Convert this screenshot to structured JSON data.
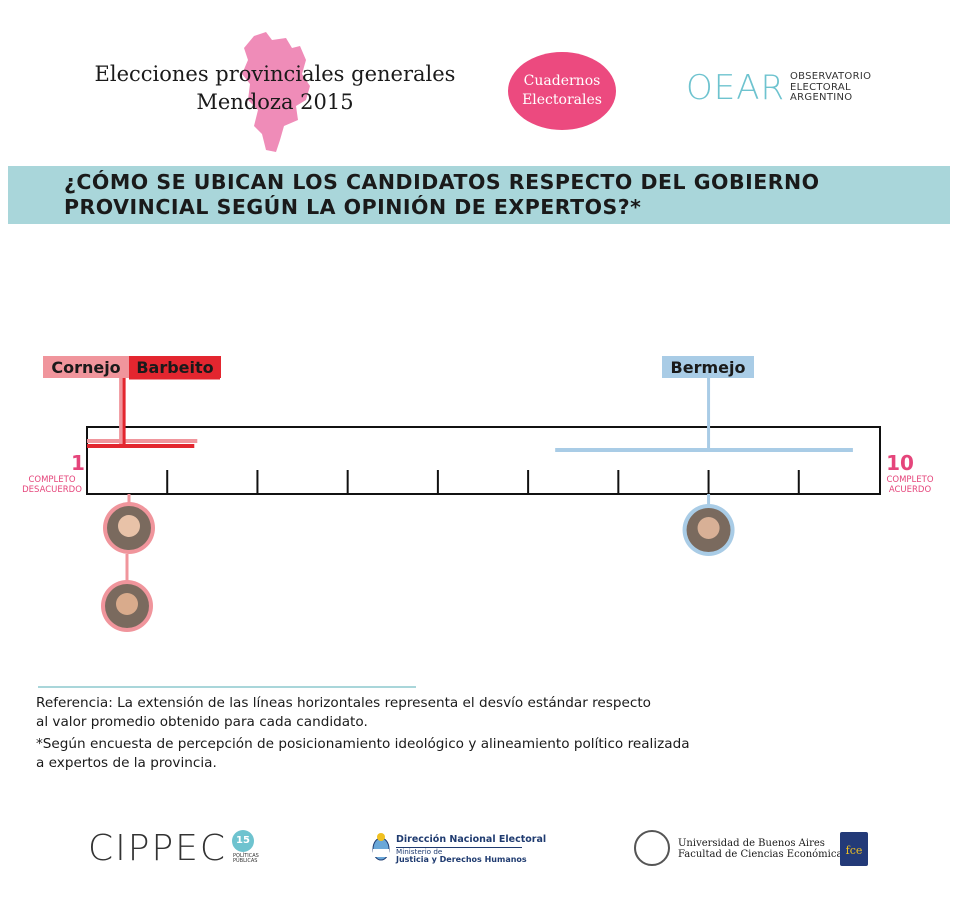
{
  "header": {
    "title_line1": "Elecciones provinciales generales",
    "title_line2": "Mendoza 2015",
    "badge_line1": "Cuadernos",
    "badge_line2": "Electorales",
    "oear_mark": "OEAR",
    "oear_line1": "OBSERVATORIO",
    "oear_line2": "ELECTORAL",
    "oear_line3": "ARGENTINO"
  },
  "banner": {
    "line1": "¿CÓMO SE UBICAN LOS CANDIDATOS RESPECTO DEL GOBIERNO",
    "line2": "PROVINCIAL SEGÚN LA OPINIÓN DE EXPERTOS?*"
  },
  "chart_data": {
    "type": "scatter",
    "title": "",
    "xlim": [
      1,
      10
    ],
    "ticks": [
      1,
      2,
      3,
      4,
      5,
      6,
      7,
      8,
      9,
      10
    ],
    "scale_left": {
      "value": "1",
      "line1": "COMPLETO",
      "line2": "DESACUERDO"
    },
    "scale_right": {
      "value": "10",
      "line1": "COMPLETO",
      "line2": "ACUERDO"
    },
    "candidates": [
      {
        "name": "Cornejo",
        "mean": 1.5,
        "sd_low": 1.0,
        "sd_high": 2.3,
        "color": "#f0959c"
      },
      {
        "name": "Barbeito",
        "mean": 1.5,
        "sd_low": 1.0,
        "sd_high": 2.3,
        "color": "#e3262f"
      },
      {
        "name": "Bermejo",
        "mean": 8.0,
        "sd_low": 6.3,
        "sd_high": 9.6,
        "color": "#a9cce6"
      }
    ]
  },
  "notes": {
    "reference_line1": "Referencia:  La extensión de las líneas horizontales representa el desvío estándar respecto",
    "reference_line2": "al valor promedio obtenido para cada candidato.",
    "survey_line1": "*Según encuesta de percepción de posicionamiento ideológico y alineamiento político realizada",
    "survey_line2": "a expertos de la provincia."
  },
  "footer": {
    "cippec": "CIPPEC",
    "cippec_badge": "15",
    "cippec_sub": "POLÍTICAS PÚBLICAS",
    "dne_title": "Dirección Nacional Electoral",
    "dne_sub1": "Ministerio de",
    "dne_sub2": "Justicia y Derechos Humanos",
    "uba_line1": "Universidad de Buenos Aires",
    "uba_line2": "Facultad de Ciencias Económicas",
    "fce": "fce"
  }
}
